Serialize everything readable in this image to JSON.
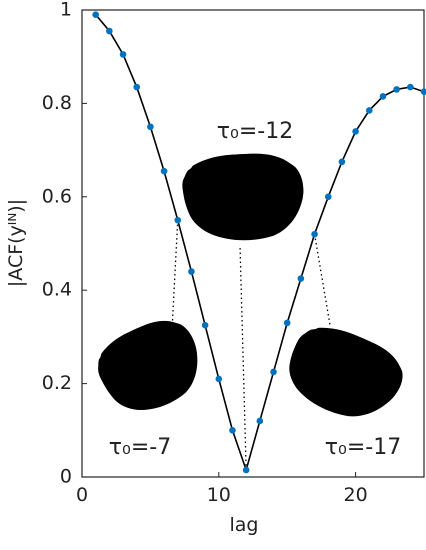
{
  "chart_data": {
    "type": "line",
    "xlabel": "lag",
    "ylabel": "|ACF(yᴵᴺ)|",
    "x": [
      1,
      2,
      3,
      4,
      5,
      6,
      7,
      8,
      9,
      10,
      11,
      12,
      13,
      14,
      15,
      16,
      17,
      18,
      19,
      20,
      21,
      22,
      23,
      24,
      25
    ],
    "series": [
      {
        "color": "#000000",
        "marker_color": "#0072bd",
        "values": [
          0.99,
          0.955,
          0.905,
          0.835,
          0.75,
          0.655,
          0.55,
          0.44,
          0.325,
          0.21,
          0.1,
          0.015,
          0.12,
          0.225,
          0.33,
          0.425,
          0.52,
          0.6,
          0.675,
          0.74,
          0.785,
          0.815,
          0.83,
          0.835,
          0.825
        ]
      }
    ],
    "xlim": [
      0,
      25
    ],
    "xticks": [
      0,
      10,
      20
    ],
    "ylim": [
      0,
      1
    ],
    "yticks": [
      0,
      0.2,
      0.4,
      0.6,
      0.8,
      1
    ],
    "annotations": [
      "τ₀=-12",
      "τ₀=-7",
      "τ₀=-17"
    ]
  }
}
